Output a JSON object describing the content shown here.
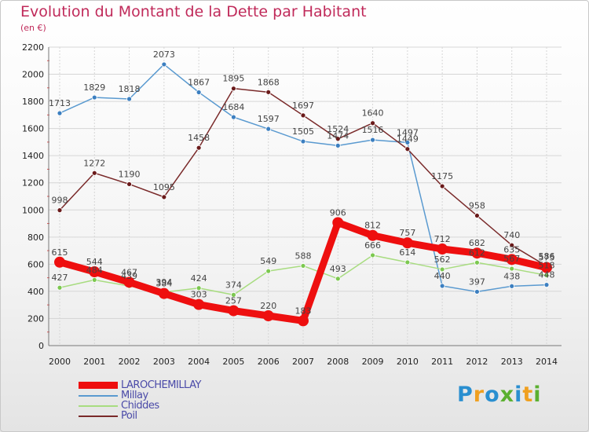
{
  "chart_data": {
    "type": "line",
    "title": "Evolution du Montant de la Dette par Habitant",
    "subtitle": "(en €)",
    "x": [
      2000,
      2001,
      2002,
      2003,
      2004,
      2005,
      2006,
      2007,
      2008,
      2009,
      2010,
      2011,
      2012,
      2013,
      2014
    ],
    "ylim": [
      0,
      2200
    ],
    "yticks": [
      0,
      200,
      400,
      600,
      800,
      1000,
      1200,
      1400,
      1600,
      1800,
      2000,
      2200
    ],
    "grid": true,
    "legend_position": "bottom-left",
    "series": [
      {
        "name": "Millay",
        "color": "#5a9ad0",
        "marker": "#3c7fc0",
        "values": [
          1713,
          1829,
          1818,
          2073,
          1867,
          1684,
          1597,
          1505,
          1474,
          1516,
          1497,
          440,
          397,
          438,
          448
        ],
        "labels": [
          "1713",
          "1829",
          "1818",
          "2073",
          "1867",
          "1684",
          "1597",
          "1505",
          "1474",
          "1516",
          "1497",
          "440",
          "397",
          "438",
          "448"
        ]
      },
      {
        "name": "Poil",
        "color": "#7a2a2a",
        "marker": "#6a1a1a",
        "values": [
          998,
          1272,
          1190,
          1095,
          1458,
          1895,
          1868,
          1697,
          1524,
          1640,
          1449,
          1175,
          958,
          740,
          586
        ],
        "labels": [
          "998",
          "1272",
          "1190",
          "1095",
          "1458",
          "1895",
          "1868",
          "1697",
          "1524",
          "1640",
          "1449",
          "1175",
          "958",
          "740",
          "586"
        ]
      },
      {
        "name": "Chiddes",
        "color": "#a8dc80",
        "marker": "#7cc850",
        "values": [
          427,
          484,
          439,
          394,
          424,
          374,
          549,
          588,
          493,
          666,
          614,
          562,
          612,
          567,
          518
        ],
        "labels": [
          "427",
          "484",
          "439",
          "394",
          "424",
          "374",
          "549",
          "588",
          "493",
          "666",
          "614",
          "562",
          "612",
          "567",
          "518"
        ]
      },
      {
        "name": "LAROCHEMILLAY",
        "color": "#ee0f0f",
        "marker": "#ee0f0f",
        "values": [
          615,
          544,
          467,
          384,
          303,
          257,
          220,
          183,
          906,
          812,
          757,
          712,
          682,
          635,
          575
        ],
        "labels": [
          "615",
          "544",
          "467",
          "384",
          "303",
          "257",
          "220",
          "183",
          "906",
          "812",
          "757",
          "712",
          "682",
          "635",
          "575"
        ]
      }
    ]
  },
  "legend": [
    {
      "label": "LAROCHEMILLAY",
      "color": "#ee0f0f",
      "thickness": 9
    },
    {
      "label": "Millay",
      "color": "#5a9ad0",
      "thickness": 2
    },
    {
      "label": "Chiddes",
      "color": "#a8dc80",
      "thickness": 2
    },
    {
      "label": "Poil",
      "color": "#7a2a2a",
      "thickness": 2
    }
  ],
  "logo": {
    "letters": [
      "P",
      "r",
      "o",
      "x",
      "i",
      "t",
      "i"
    ],
    "colors": [
      "#2a8fd0",
      "#f0a020",
      "#2a8fd0",
      "#5bb030",
      "#2a8fd0",
      "#f0a020",
      "#5bb030"
    ]
  }
}
